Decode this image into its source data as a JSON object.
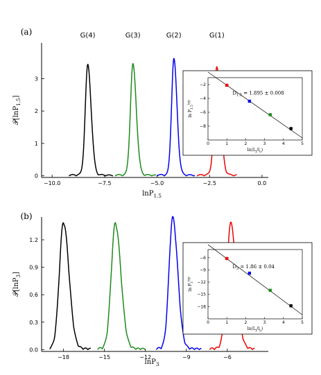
{
  "panels": [
    {
      "panel_label": "(a)",
      "peak_labels": [
        "G(4)",
        "G(3)",
        "G(2)",
        "G(1)"
      ],
      "inset": {
        "annotation": "D_{1.5} = 1.895 ± 0.008",
        "ylabel": "ln P_{1.5}^{typ}",
        "xlabel": "ln(L_j/l_u)"
      }
    },
    {
      "panel_label": "(b)",
      "peak_labels": [],
      "inset": {
        "annotation": "D_3 = 1.86 ± 0.04",
        "ylabel": "ln P_3^{typ}",
        "xlabel": "ln(L_j/l_u)"
      }
    }
  ],
  "chart_data": [
    {
      "type": "line",
      "xlabel": "lnP_{1.5}",
      "ylabel": "𝒫[lnP_{1.5}]",
      "xlim": [
        -10.5,
        0.3
      ],
      "ylim": [
        -0.05,
        4.1
      ],
      "xticks": [
        -10.0,
        -7.5,
        -5.0,
        -2.5,
        0.0
      ],
      "xtick_labels": [
        "−10.0",
        "−7.5",
        "−5.0",
        "−2.5",
        "0.0"
      ],
      "yticks": [
        0,
        1,
        2,
        3
      ],
      "ytick_labels": [
        "0",
        "1",
        "2",
        "3"
      ],
      "series": [
        {
          "name": "G(4)",
          "color": "#000000",
          "peak_x": -8.3,
          "peak_y": 3.36,
          "width": 0.12,
          "xmin": -9.2,
          "xmax": -7.1
        },
        {
          "name": "G(3)",
          "color": "#1b8a1b",
          "peak_x": -6.15,
          "peak_y": 3.38,
          "width": 0.12,
          "xmin": -7.0,
          "xmax": -5.05
        },
        {
          "name": "G(2)",
          "color": "#0000ee",
          "peak_x": -4.2,
          "peak_y": 3.55,
          "width": 0.11,
          "xmin": -5.0,
          "xmax": -3.2
        },
        {
          "name": "G(1)",
          "color": "#ee0000",
          "peak_x": -2.15,
          "peak_y": 3.3,
          "width": 0.13,
          "xmin": -3.1,
          "xmax": -1.2
        }
      ],
      "inset": {
        "type": "scatter",
        "xlim": [
          0,
          5
        ],
        "ylim": [
          -10,
          -1
        ],
        "xticks": [
          0,
          1,
          2,
          3,
          4,
          5
        ],
        "yticks": [
          -2,
          -4,
          -6,
          -8
        ],
        "points": [
          {
            "x": 1.0,
            "y": -2.1,
            "color": "#ee0000"
          },
          {
            "x": 2.2,
            "y": -4.4,
            "color": "#0000ee"
          },
          {
            "x": 3.3,
            "y": -6.35,
            "color": "#1b8a1b"
          },
          {
            "x": 4.4,
            "y": -8.35,
            "color": "#000000"
          }
        ],
        "fit_line": {
          "x": [
            0.0,
            5.0
          ],
          "y": [
            -0.2,
            -9.7
          ]
        }
      }
    },
    {
      "type": "line",
      "xlabel": "lnP_3",
      "ylabel": "𝒫[lnP_3]",
      "xlim": [
        -19.6,
        -3.0
      ],
      "ylim": [
        -0.02,
        1.45
      ],
      "xticks": [
        -18,
        -15,
        -12,
        -9,
        -6
      ],
      "xtick_labels": [
        "−18",
        "−15",
        "−12",
        "−9",
        "−6"
      ],
      "yticks": [
        0.0,
        0.3,
        0.6,
        0.9,
        1.2
      ],
      "ytick_labels": [
        "0.0",
        "0.3",
        "0.6",
        "0.9",
        "1.2"
      ],
      "series": [
        {
          "name": "G(4)",
          "color": "#000000",
          "peak_x": -18.0,
          "peak_y": 1.37,
          "width": 0.3,
          "xmin": -19.0,
          "xmax": -16.0
        },
        {
          "name": "G(3)",
          "color": "#1b8a1b",
          "peak_x": -14.2,
          "peak_y": 1.36,
          "width": 0.3,
          "xmin": -15.5,
          "xmax": -12.0
        },
        {
          "name": "G(2)",
          "color": "#0000ee",
          "peak_x": -10.0,
          "peak_y": 1.42,
          "width": 0.27,
          "xmin": -11.2,
          "xmax": -7.9
        },
        {
          "name": "G(1)",
          "color": "#ee0000",
          "peak_x": -5.75,
          "peak_y": 1.36,
          "width": 0.3,
          "xmin": -7.3,
          "xmax": -4.0
        }
      ],
      "inset": {
        "type": "scatter",
        "xlim": [
          0,
          5
        ],
        "ylim": [
          -21,
          -4
        ],
        "xticks": [
          0,
          1,
          2,
          3,
          4,
          5
        ],
        "yticks": [
          -6,
          -9,
          -12,
          -15,
          -18
        ],
        "points": [
          {
            "x": 1.0,
            "y": -6.2,
            "color": "#ee0000"
          },
          {
            "x": 2.2,
            "y": -9.8,
            "color": "#0000ee"
          },
          {
            "x": 3.3,
            "y": -14.0,
            "color": "#1b8a1b"
          },
          {
            "x": 4.4,
            "y": -17.8,
            "color": "#000000"
          }
        ],
        "fit_line": {
          "x": [
            0.0,
            5.0
          ],
          "y": [
            -2.8,
            -20.0
          ]
        }
      }
    }
  ]
}
